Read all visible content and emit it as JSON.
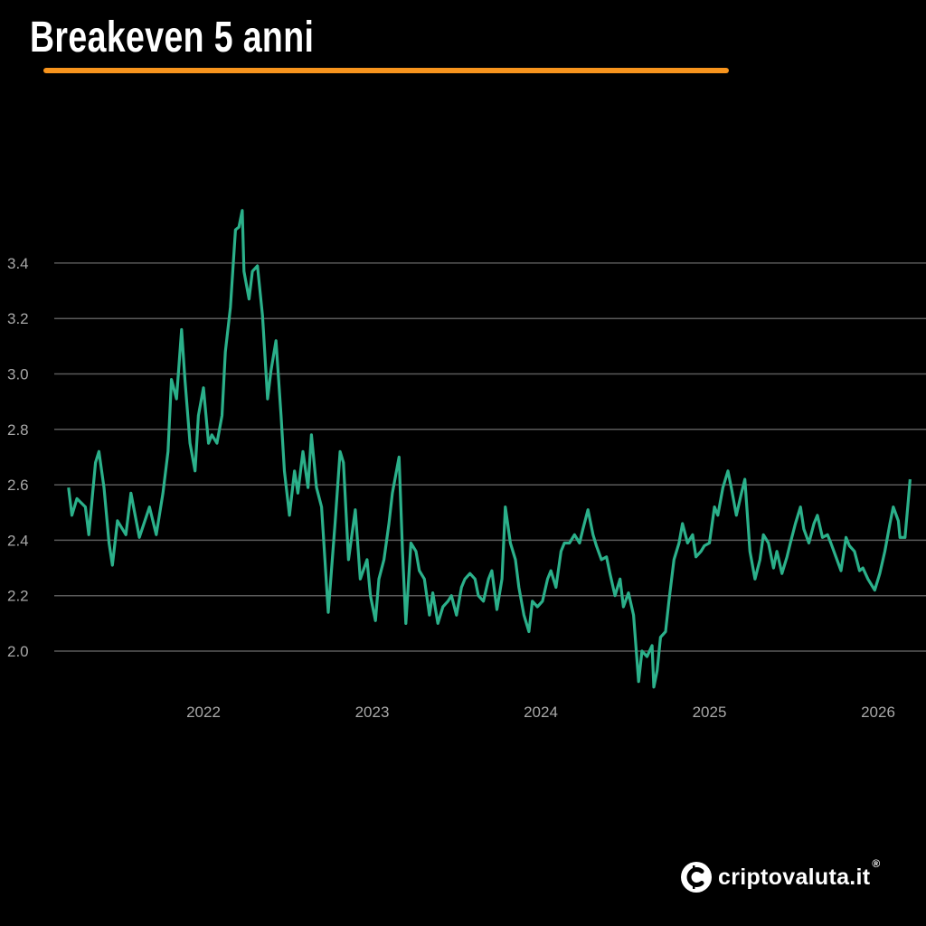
{
  "header": {
    "title": "Breakeven 5 anni",
    "accent_color": "#f7941d"
  },
  "brand": {
    "name": "criptovaluta.it",
    "registered": "®",
    "icon": "bitcoin-c-logo-icon"
  },
  "chart_data": {
    "type": "line",
    "title": "Breakeven 5 anni",
    "xlabel": "",
    "ylabel": "",
    "line_color": "#2bb08a",
    "grid": "horizontal",
    "xlim": [
      2021.2,
      2026.2
    ],
    "ylim": [
      1.85,
      3.6
    ],
    "x_ticks": [
      "2022",
      "2023",
      "2024",
      "2025",
      "2026"
    ],
    "y_ticks": [
      "2.0",
      "2.2",
      "2.4",
      "2.6",
      "2.8",
      "3.0",
      "3.2",
      "3.4"
    ],
    "x": [
      2021.2,
      2021.22,
      2021.25,
      2021.3,
      2021.32,
      2021.36,
      2021.38,
      2021.41,
      2021.44,
      2021.46,
      2021.49,
      2021.54,
      2021.57,
      2021.62,
      2021.68,
      2021.72,
      2021.76,
      2021.79,
      2021.81,
      2021.84,
      2021.87,
      2021.89,
      2021.92,
      2021.95,
      2021.97,
      2022.0,
      2022.03,
      2022.05,
      2022.08,
      2022.11,
      2022.13,
      2022.16,
      2022.19,
      2022.21,
      2022.23,
      2022.24,
      2022.27,
      2022.29,
      2022.32,
      2022.35,
      2022.38,
      2022.4,
      2022.43,
      2022.46,
      2022.48,
      2022.51,
      2022.54,
      2022.56,
      2022.59,
      2022.62,
      2022.64,
      2022.67,
      2022.7,
      2022.72,
      2022.74,
      2022.78,
      2022.81,
      2022.83,
      2022.86,
      2022.9,
      2022.93,
      2022.97,
      2022.99,
      2023.02,
      2023.04,
      2023.07,
      2023.1,
      2023.12,
      2023.16,
      2023.18,
      2023.2,
      2023.23,
      2023.26,
      2023.28,
      2023.31,
      2023.34,
      2023.36,
      2023.39,
      2023.42,
      2023.45,
      2023.47,
      2023.5,
      2023.53,
      2023.55,
      2023.58,
      2023.61,
      2023.63,
      2023.66,
      2023.69,
      2023.71,
      2023.74,
      2023.77,
      2023.79,
      2023.82,
      2023.85,
      2023.87,
      2023.9,
      2023.93,
      2023.95,
      2023.98,
      2024.01,
      2024.04,
      2024.06,
      2024.09,
      2024.12,
      2024.14,
      2024.17,
      2024.2,
      2024.23,
      2024.25,
      2024.28,
      2024.31,
      2024.33,
      2024.36,
      2024.39,
      2024.41,
      2024.44,
      2024.47,
      2024.49,
      2024.52,
      2024.55,
      2024.58,
      2024.6,
      2024.63,
      2024.66,
      2024.67,
      2024.69,
      2024.71,
      2024.74,
      2024.76,
      2024.79,
      2024.82,
      2024.84,
      2024.87,
      2024.9,
      2024.92,
      2024.95,
      2024.97,
      2025.0,
      2025.03,
      2025.05,
      2025.08,
      2025.11,
      2025.13,
      2025.16,
      2025.19,
      2025.21,
      2025.24,
      2025.27,
      2025.3,
      2025.32,
      2025.35,
      2025.38,
      2025.4,
      2025.43,
      2025.46,
      2025.48,
      2025.51,
      2025.54,
      2025.56,
      2025.59,
      2025.62,
      2025.64,
      2025.67,
      2025.7,
      2025.72,
      2025.75,
      2025.78,
      2025.81,
      2025.83,
      2025.86,
      2025.89,
      2025.91,
      2025.94,
      2025.97,
      2025.98,
      2026.01,
      2026.04,
      2026.07,
      2026.09,
      2026.12,
      2026.13,
      2026.16,
      2026.18,
      2026.19
    ],
    "y": [
      2.59,
      2.49,
      2.55,
      2.52,
      2.42,
      2.68,
      2.72,
      2.59,
      2.39,
      2.31,
      2.47,
      2.42,
      2.57,
      2.41,
      2.52,
      2.42,
      2.57,
      2.72,
      2.98,
      2.91,
      3.16,
      2.98,
      2.75,
      2.65,
      2.85,
      2.95,
      2.75,
      2.78,
      2.75,
      2.85,
      3.08,
      3.24,
      3.52,
      3.53,
      3.59,
      3.37,
      3.27,
      3.37,
      3.39,
      3.21,
      2.91,
      3.01,
      3.12,
      2.85,
      2.65,
      2.49,
      2.65,
      2.57,
      2.72,
      2.59,
      2.78,
      2.59,
      2.52,
      2.33,
      2.14,
      2.46,
      2.72,
      2.68,
      2.33,
      2.51,
      2.26,
      2.33,
      2.2,
      2.11,
      2.26,
      2.33,
      2.46,
      2.57,
      2.7,
      2.36,
      2.1,
      2.39,
      2.36,
      2.29,
      2.26,
      2.13,
      2.21,
      2.1,
      2.16,
      2.18,
      2.2,
      2.13,
      2.23,
      2.26,
      2.28,
      2.26,
      2.2,
      2.18,
      2.26,
      2.29,
      2.15,
      2.26,
      2.52,
      2.39,
      2.33,
      2.23,
      2.13,
      2.07,
      2.18,
      2.16,
      2.18,
      2.26,
      2.29,
      2.23,
      2.36,
      2.39,
      2.39,
      2.42,
      2.39,
      2.44,
      2.51,
      2.42,
      2.38,
      2.33,
      2.34,
      2.28,
      2.2,
      2.26,
      2.16,
      2.21,
      2.13,
      1.89,
      2.0,
      1.98,
      2.02,
      1.87,
      1.93,
      2.05,
      2.07,
      2.18,
      2.33,
      2.39,
      2.46,
      2.39,
      2.42,
      2.34,
      2.36,
      2.38,
      2.39,
      2.52,
      2.49,
      2.59,
      2.65,
      2.59,
      2.49,
      2.57,
      2.62,
      2.36,
      2.26,
      2.33,
      2.42,
      2.39,
      2.3,
      2.36,
      2.28,
      2.34,
      2.39,
      2.46,
      2.52,
      2.44,
      2.39,
      2.46,
      2.49,
      2.41,
      2.42,
      2.39,
      2.34,
      2.29,
      2.41,
      2.38,
      2.36,
      2.29,
      2.3,
      2.26,
      2.23,
      2.22,
      2.28,
      2.36,
      2.46,
      2.52,
      2.47,
      2.41,
      2.41,
      2.55,
      2.62
    ]
  }
}
